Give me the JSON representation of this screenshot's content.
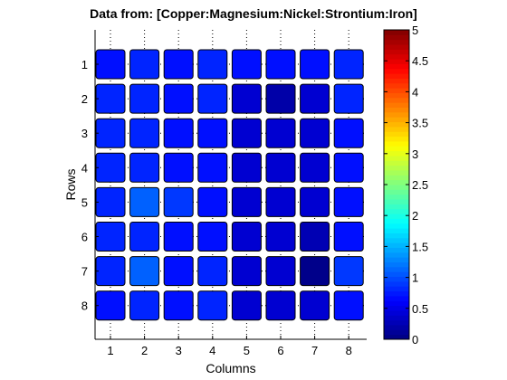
{
  "chart_data": {
    "type": "heatmap",
    "title": "Data from: [Copper:Magnesium:Nickel:Strontium:Iron]",
    "xlabel": "Columns",
    "ylabel": "Rows",
    "x_ticks": [
      "1",
      "2",
      "3",
      "4",
      "5",
      "6",
      "7",
      "8"
    ],
    "y_ticks": [
      "1",
      "2",
      "3",
      "4",
      "5",
      "6",
      "7",
      "8"
    ],
    "values": [
      [
        0.7,
        0.8,
        0.7,
        0.8,
        0.7,
        0.7,
        0.7,
        0.8
      ],
      [
        0.8,
        0.8,
        0.7,
        0.8,
        0.4,
        0.2,
        0.4,
        0.8
      ],
      [
        0.8,
        0.8,
        0.7,
        0.7,
        0.4,
        0.4,
        0.4,
        0.7
      ],
      [
        0.8,
        0.8,
        0.7,
        0.7,
        0.4,
        0.4,
        0.4,
        0.7
      ],
      [
        0.8,
        1.1,
        0.9,
        0.7,
        0.4,
        0.4,
        0.4,
        0.7
      ],
      [
        0.8,
        0.8,
        0.7,
        0.7,
        0.4,
        0.4,
        0.25,
        0.7
      ],
      [
        0.8,
        1.1,
        0.7,
        0.8,
        0.4,
        0.4,
        0.05,
        0.9
      ],
      [
        0.7,
        0.8,
        0.7,
        0.8,
        0.4,
        0.4,
        0.4,
        0.7
      ]
    ],
    "colorbar": {
      "range": [
        0,
        5
      ],
      "ticks": [
        "0",
        "0.5",
        "1",
        "1.5",
        "2",
        "2.5",
        "3",
        "3.5",
        "4",
        "4.5",
        "5"
      ],
      "colormap": "jet"
    },
    "grid": true,
    "grid_style": "dotted"
  },
  "colors": {
    "cell_border": "#000000",
    "axis": "#000000",
    "grid": "#000000"
  }
}
